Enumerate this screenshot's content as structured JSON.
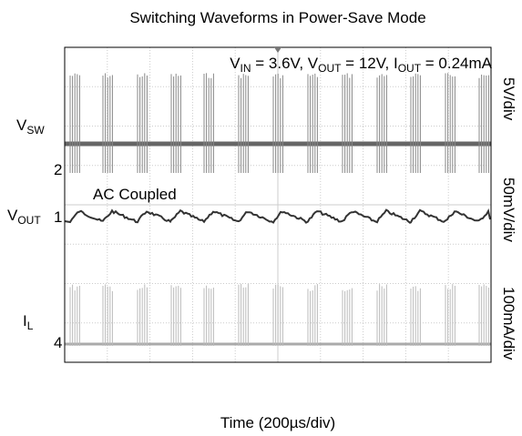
{
  "title": "Switching Waveforms in Power-Save Mode",
  "conditions": [
    "V",
    "IN",
    " = 3.6V, V",
    "OUT",
    " = 12V, I",
    "OUT",
    " = 0.24mA"
  ],
  "channels": [
    {
      "label": [
        "V",
        "SW"
      ],
      "marker": "2",
      "scale": "5V/div"
    },
    {
      "label": [
        "V",
        "OUT"
      ],
      "marker": "1",
      "scale": "50mV/div",
      "note": "AC Coupled"
    },
    {
      "label": [
        "I",
        "L"
      ],
      "marker": "4",
      "scale": "100mA/div"
    }
  ],
  "x_label": "Time (200µs/div)"
}
